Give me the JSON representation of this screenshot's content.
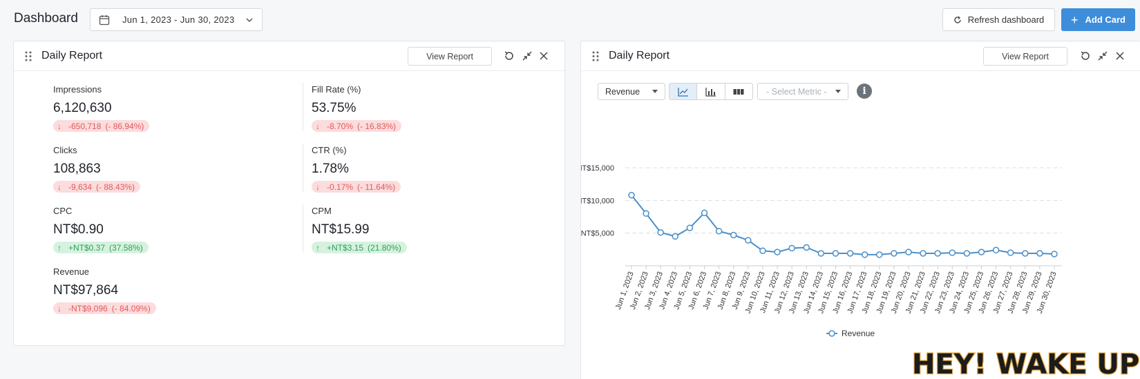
{
  "header": {
    "title": "Dashboard",
    "date_range": "Jun 1, 2023 - Jun 30, 2023",
    "refresh_label": "Refresh dashboard",
    "add_card_label": "Add Card"
  },
  "left_card": {
    "title": "Daily Report",
    "view_report_label": "View Report",
    "metrics": [
      {
        "label": "Impressions",
        "value": "6,120,630",
        "delta": "-650,718",
        "pct": "(- 86.94%)",
        "trend": "down"
      },
      {
        "label": "Fill Rate (%)",
        "value": "53.75%",
        "delta": "-8.70%",
        "pct": "(- 16.83%)",
        "trend": "down"
      },
      {
        "label": "Clicks",
        "value": "108,863",
        "delta": "-9,634",
        "pct": "(- 88.43%)",
        "trend": "down"
      },
      {
        "label": "CTR (%)",
        "value": "1.78%",
        "delta": "-0.17%",
        "pct": "(- 11.64%)",
        "trend": "down"
      },
      {
        "label": "CPC",
        "value": "NT$0.90",
        "delta": "+NT$0.37",
        "pct": "(37.58%)",
        "trend": "up"
      },
      {
        "label": "CPM",
        "value": "NT$15.99",
        "delta": "+NT$3.15",
        "pct": "(21.80%)",
        "trend": "up"
      },
      {
        "label": "Revenue",
        "value": "NT$97,864",
        "delta": "-NT$9,096",
        "pct": "(- 84.09%)",
        "trend": "down"
      }
    ]
  },
  "right_card": {
    "title": "Daily Report",
    "view_report_label": "View Report",
    "metric_select": "Revenue",
    "chart_types": [
      "line-chart-icon",
      "bar-chart-icon",
      "table-icon"
    ],
    "active_chart_type": "line",
    "select_metric_placeholder": "- Select Metric -",
    "info_glyph": "i"
  },
  "chart_data": {
    "type": "line",
    "series": [
      {
        "name": "Revenue",
        "values": [
          10800,
          8000,
          5100,
          4500,
          5800,
          8100,
          5300,
          4700,
          3900,
          2300,
          2100,
          2700,
          2800,
          1900,
          1900,
          1900,
          1700,
          1700,
          1900,
          2100,
          1900,
          1900,
          2000,
          1900,
          2100,
          2400,
          2000,
          1900,
          1900,
          1800
        ]
      }
    ],
    "x": [
      "Jun 1, 2023",
      "Jun 2, 2023",
      "Jun 3, 2023",
      "Jun 4, 2023",
      "Jun 5, 2023",
      "Jun 6, 2023",
      "Jun 7, 2023",
      "Jun 8, 2023",
      "Jun 9, 2023",
      "Jun 10, 2023",
      "Jun 11, 2023",
      "Jun 12, 2023",
      "Jun 13, 2023",
      "Jun 14, 2023",
      "Jun 15, 2023",
      "Jun 16, 2023",
      "Jun 17, 2023",
      "Jun 18, 2023",
      "Jun 19, 2023",
      "Jun 20, 2023",
      "Jun 21, 2023",
      "Jun 22, 2023",
      "Jun 23, 2023",
      "Jun 24, 2023",
      "Jun 25, 2023",
      "Jun 26, 2023",
      "Jun 27, 2023",
      "Jun 28, 2023",
      "Jun 29, 2023",
      "Jun 30, 2023"
    ],
    "y_ticks": [
      "NT$5,000",
      "NT$10,000",
      "NT$15,000"
    ],
    "y_tick_values": [
      5000,
      10000,
      15000
    ],
    "ylim": [
      0,
      15000
    ],
    "grid": true,
    "legend": "bottom-center",
    "color": "#4a8fc9"
  },
  "overlay": {
    "text": "HEY! WAKE UP!"
  }
}
